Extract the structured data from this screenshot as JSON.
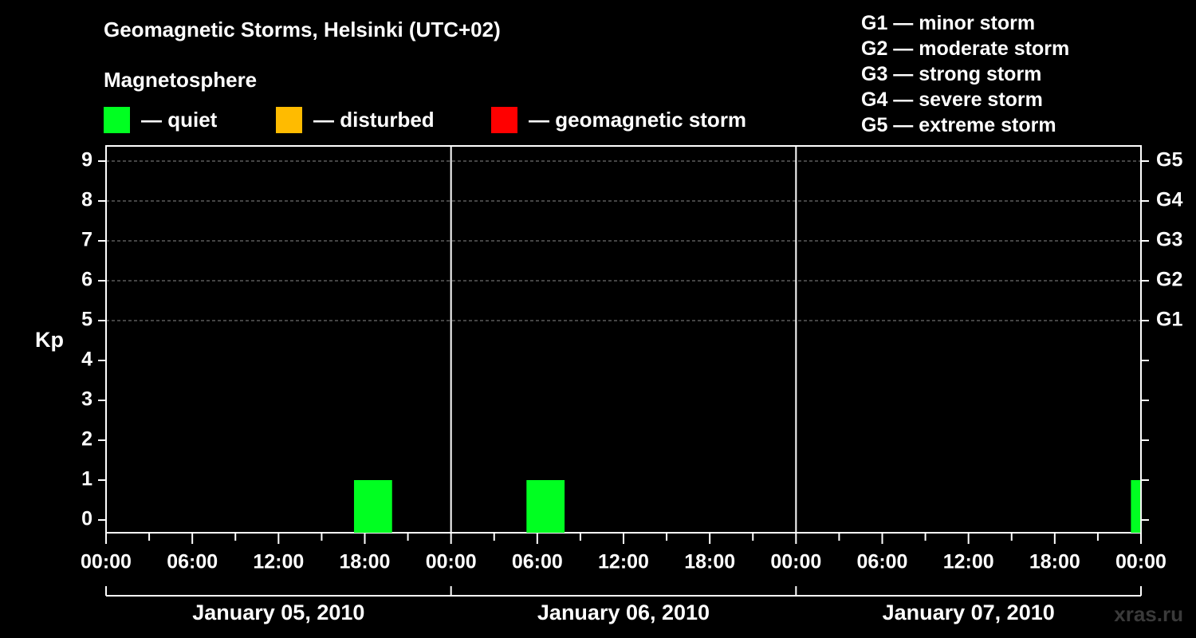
{
  "header": {
    "title": "Geomagnetic Storms, Helsinki (UTC+02)",
    "legend_title": "Magnetosphere",
    "legend": [
      {
        "label": "— quiet",
        "color": "#00ff21"
      },
      {
        "label": "— disturbed",
        "color": "#ffbb00"
      },
      {
        "label": "— geomagnetic storm",
        "color": "#ff0000"
      }
    ],
    "g_levels": [
      "G1 — minor storm",
      "G2 — moderate storm",
      "G3 — strong storm",
      "G4 — severe storm",
      "G5 — extreme storm"
    ]
  },
  "credit": "xras.ru",
  "chart_data": {
    "type": "bar",
    "title": "Geomagnetic Storms, Helsinki (UTC+02)",
    "xlabel": "",
    "ylabel": "Kp",
    "ylim": [
      0,
      9
    ],
    "yticks": [
      "0",
      "1",
      "2",
      "3",
      "4",
      "5",
      "6",
      "7",
      "8",
      "9"
    ],
    "right_ticks": [
      {
        "kp": 5,
        "label": "G1"
      },
      {
        "kp": 6,
        "label": "G2"
      },
      {
        "kp": 7,
        "label": "G3"
      },
      {
        "kp": 8,
        "label": "G4"
      },
      {
        "kp": 9,
        "label": "G5"
      }
    ],
    "grid": true,
    "x_range_hours": [
      0,
      72
    ],
    "xtick_labels": [
      "00:00",
      "06:00",
      "12:00",
      "18:00",
      "00:00",
      "06:00",
      "12:00",
      "18:00",
      "00:00",
      "06:00",
      "12:00",
      "18:00",
      "00:00"
    ],
    "days": [
      "January 05, 2010",
      "January 06, 2010",
      "January 07, 2010"
    ],
    "bars": [
      {
        "start_hour": 17.25,
        "end_hour": 19.9,
        "kp": 1,
        "status": "quiet"
      },
      {
        "start_hour": 29.25,
        "end_hour": 31.9,
        "kp": 1,
        "status": "quiet"
      },
      {
        "start_hour": 71.3,
        "end_hour": 71.95,
        "kp": 1,
        "status": "quiet"
      }
    ],
    "status_colors": {
      "quiet": "#00ff21",
      "disturbed": "#ffbb00",
      "storm": "#ff0000"
    }
  }
}
